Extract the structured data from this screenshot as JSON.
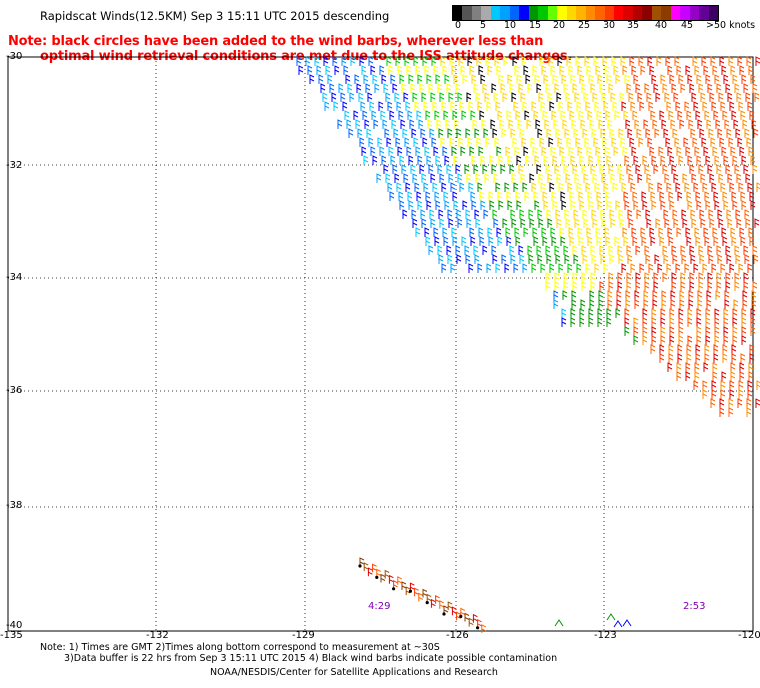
{
  "title": "Rapidscat Winds(12.5KM) Sep  3 15:11 UTC 2015 descending",
  "note_line1": "Note: black circles have been added to the wind barbs, wherever less than",
  "note_line2": "optimal wind retrieval conditions are met due to the ISS attitude changes.",
  "color_scale": {
    "labels": [
      "0",
      "5",
      "10",
      "15",
      "20",
      "25",
      "30",
      "35",
      "40",
      "45",
      ">50 knots"
    ],
    "colors": [
      "#000000",
      "#555555",
      "#808080",
      "#aaaaaa",
      "#00c8ff",
      "#00a0ff",
      "#0064ff",
      "#0000ff",
      "#009600",
      "#00c800",
      "#64ff00",
      "#ffff00",
      "#ffd700",
      "#ffb400",
      "#ff8c00",
      "#ff6400",
      "#ff3c00",
      "#ff0000",
      "#dc0000",
      "#b40000",
      "#8c0000",
      "#a05000",
      "#8c3c00",
      "#ff00ff",
      "#c800ff",
      "#9600c8",
      "#640096",
      "#3c0064"
    ]
  },
  "lat_labels": [
    "-30",
    "-32",
    "-34",
    "-36",
    "-38",
    "-40"
  ],
  "lon_labels": [
    "-135",
    "-132",
    "-129",
    "-126",
    "-123",
    "-120"
  ],
  "time_labels": [
    "4:29",
    "2:53"
  ],
  "footer_line1": "Note: 1) Times are GMT 2)Times along bottom correspond to measurement at ~30S",
  "footer_line2": "3)Data buffer is 22 hrs from Sep  3 15:11 UTC 2015 4) Black wind barbs indicate possible contamination",
  "footer_credit": "NOAA/NESDIS/Center for Satellite Applications and Research"
}
